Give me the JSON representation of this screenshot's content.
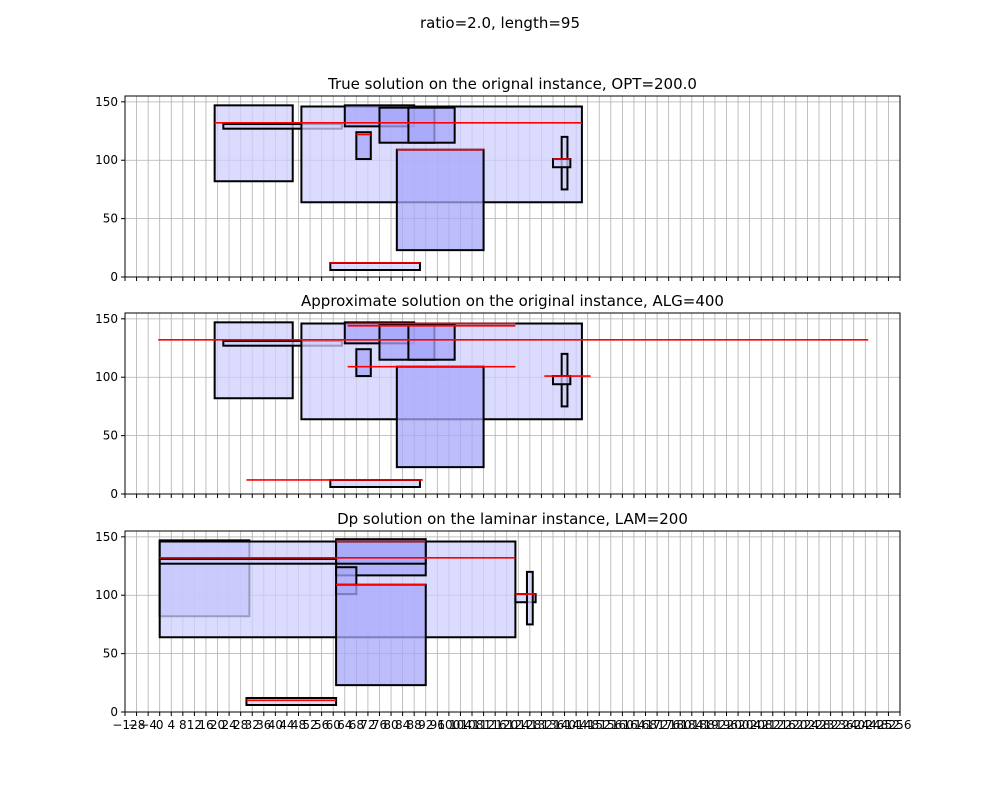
{
  "figure": {
    "suptitle": "ratio=2.0, length=95"
  },
  "chart_data": [
    {
      "type": "rectangles",
      "title": "True solution on the orignal instance, OPT=200.0",
      "xlim": [
        -12,
        256
      ],
      "ylim": [
        0,
        155
      ],
      "yticks": [
        0,
        50,
        100,
        150
      ],
      "grid": true,
      "rects": [
        {
          "x0": 19,
          "x1": 46,
          "y0": 82,
          "y1": 147,
          "shade": "light"
        },
        {
          "x0": 22,
          "x1": 63,
          "y0": 127,
          "y1": 131,
          "shade": "light"
        },
        {
          "x0": 49,
          "x1": 146,
          "y0": 64,
          "y1": 146,
          "shade": "light"
        },
        {
          "x0": 64,
          "x1": 88,
          "y0": 129,
          "y1": 147,
          "shade": "medium"
        },
        {
          "x0": 68,
          "x1": 73,
          "y0": 101,
          "y1": 124,
          "shade": "medium"
        },
        {
          "x0": 76,
          "x1": 95,
          "y0": 115,
          "y1": 145,
          "shade": "medium"
        },
        {
          "x0": 86,
          "x1": 102,
          "y0": 115,
          "y1": 145,
          "shade": "medium"
        },
        {
          "x0": 82,
          "x1": 112,
          "y0": 23,
          "y1": 109,
          "shade": "medium"
        },
        {
          "x0": 139,
          "x1": 141,
          "y0": 75,
          "y1": 120,
          "shade": "light"
        },
        {
          "x0": 136,
          "x1": 142,
          "y0": 94,
          "y1": 101,
          "shade": "light"
        },
        {
          "x0": 59,
          "x1": 90,
          "y0": 6,
          "y1": 12,
          "shade": "light"
        }
      ],
      "lines": [
        {
          "x0": 19,
          "x1": 146,
          "y": 132
        },
        {
          "x0": 82,
          "x1": 112,
          "y": 109
        },
        {
          "x0": 68,
          "x1": 73,
          "y": 122
        },
        {
          "x0": 136,
          "x1": 142,
          "y": 101
        },
        {
          "x0": 59,
          "x1": 90,
          "y": 12
        }
      ]
    },
    {
      "type": "rectangles",
      "title": "Approximate solution on the original instance, ALG=400",
      "xlim": [
        -12,
        256
      ],
      "ylim": [
        0,
        155
      ],
      "yticks": [
        0,
        50,
        100,
        150
      ],
      "grid": true,
      "rects": [
        {
          "x0": 19,
          "x1": 46,
          "y0": 82,
          "y1": 147,
          "shade": "light"
        },
        {
          "x0": 22,
          "x1": 63,
          "y0": 127,
          "y1": 131,
          "shade": "light"
        },
        {
          "x0": 49,
          "x1": 146,
          "y0": 64,
          "y1": 146,
          "shade": "light"
        },
        {
          "x0": 64,
          "x1": 88,
          "y0": 129,
          "y1": 147,
          "shade": "medium"
        },
        {
          "x0": 68,
          "x1": 73,
          "y0": 101,
          "y1": 124,
          "shade": "medium"
        },
        {
          "x0": 76,
          "x1": 95,
          "y0": 115,
          "y1": 145,
          "shade": "medium"
        },
        {
          "x0": 86,
          "x1": 102,
          "y0": 115,
          "y1": 145,
          "shade": "medium"
        },
        {
          "x0": 82,
          "x1": 112,
          "y0": 23,
          "y1": 109,
          "shade": "medium"
        },
        {
          "x0": 139,
          "x1": 141,
          "y0": 75,
          "y1": 120,
          "shade": "light"
        },
        {
          "x0": 136,
          "x1": 142,
          "y0": 94,
          "y1": 101,
          "shade": "light"
        },
        {
          "x0": 59,
          "x1": 90,
          "y0": 6,
          "y1": 12,
          "shade": "light"
        }
      ],
      "lines": [
        {
          "x0": -0.5,
          "x1": 245,
          "y": 132
        },
        {
          "x0": 65,
          "x1": 123,
          "y": 146
        },
        {
          "x0": 65,
          "x1": 123,
          "y": 144
        },
        {
          "x0": 65,
          "x1": 123,
          "y": 109
        },
        {
          "x0": 133,
          "x1": 149,
          "y": 101
        },
        {
          "x0": 30,
          "x1": 91,
          "y": 12
        }
      ]
    },
    {
      "type": "rectangles",
      "title": "Dp solution on the laminar instance, LAM=200",
      "xlim": [
        -12,
        256
      ],
      "ylim": [
        0,
        155
      ],
      "yticks": [
        0,
        50,
        100,
        150
      ],
      "grid": true,
      "rects": [
        {
          "x0": 0,
          "x1": 31,
          "y0": 82,
          "y1": 147,
          "shade": "medium"
        },
        {
          "x0": 0,
          "x1": 123,
          "y0": 64,
          "y1": 146,
          "shade": "light"
        },
        {
          "x0": 0,
          "x1": 62,
          "y0": 127,
          "y1": 131,
          "shade": "light"
        },
        {
          "x0": 61,
          "x1": 92,
          "y0": 117,
          "y1": 148,
          "shade": "medium"
        },
        {
          "x0": 61,
          "x1": 92,
          "y0": 127,
          "y1": 146,
          "shade": "medium"
        },
        {
          "x0": 61,
          "x1": 68,
          "y0": 101,
          "y1": 124,
          "shade": "medium"
        },
        {
          "x0": 61,
          "x1": 92,
          "y0": 23,
          "y1": 109,
          "shade": "medium"
        },
        {
          "x0": 123,
          "x1": 130,
          "y0": 94,
          "y1": 101,
          "shade": "light"
        },
        {
          "x0": 127,
          "x1": 129,
          "y0": 75,
          "y1": 120,
          "shade": "light"
        },
        {
          "x0": 30,
          "x1": 61,
          "y0": 6,
          "y1": 12,
          "shade": "light"
        }
      ],
      "lines": [
        {
          "x0": 0,
          "x1": 123,
          "y": 132
        },
        {
          "x0": 61,
          "x1": 92,
          "y": 146
        },
        {
          "x0": 61,
          "x1": 92,
          "y": 109
        },
        {
          "x0": 123,
          "x1": 130,
          "y": 101
        },
        {
          "x0": 30,
          "x1": 61,
          "y": 10
        }
      ]
    }
  ],
  "x_ticks": {
    "values": [
      -12,
      -8,
      -4,
      0,
      4,
      8,
      12,
      16,
      20,
      24,
      28,
      32,
      36,
      40,
      44,
      48,
      52,
      56,
      60,
      64,
      68,
      72,
      76,
      80,
      84,
      88,
      92,
      96,
      100,
      104,
      108,
      112,
      116,
      120,
      124,
      128,
      132,
      136,
      140,
      144,
      148,
      152,
      156,
      160,
      164,
      168,
      172,
      176,
      180,
      184,
      188,
      192,
      196,
      200,
      204,
      208,
      212,
      216,
      220,
      224,
      228,
      232,
      236,
      240,
      244,
      248,
      252,
      256
    ]
  },
  "colors": {
    "light_fill": "#cfcffd",
    "medium_fill": "#a7a7fb",
    "edge": "#000000",
    "line": "#ff0000",
    "grid": "#b0b0b0"
  }
}
